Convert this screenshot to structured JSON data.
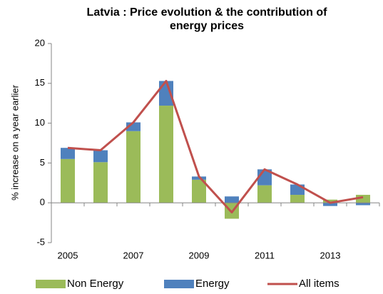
{
  "chart_data": {
    "type": "stacked_bar_line",
    "title": [
      "Latvia : Price evolution & the contribution of",
      "energy prices"
    ],
    "y_label": "% increase on a year earlier",
    "categories": [
      "2005",
      null,
      "2007",
      null,
      "2009",
      null,
      "2011",
      null,
      "2013",
      null
    ],
    "series": [
      {
        "name": "Non Energy",
        "kind": "bar",
        "color": "#9bbb59",
        "values": [
          5.5,
          5.1,
          9.0,
          12.2,
          2.9,
          -2.0,
          2.2,
          1.0,
          0.4,
          1.0
        ]
      },
      {
        "name": "Energy",
        "kind": "bar",
        "color": "#4f81bd",
        "values": [
          1.4,
          1.5,
          1.1,
          3.1,
          0.4,
          0.8,
          2.0,
          1.3,
          -0.4,
          -0.3
        ]
      },
      {
        "name": "All items",
        "kind": "line",
        "color": "#c0504d",
        "values": [
          6.9,
          6.6,
          10.1,
          15.3,
          3.3,
          -1.2,
          4.2,
          2.3,
          0.0,
          0.7
        ]
      }
    ],
    "ylim": [
      -5,
      20
    ],
    "yticks": [
      -5,
      0,
      5,
      10,
      15,
      20
    ],
    "legend": "bottom"
  }
}
